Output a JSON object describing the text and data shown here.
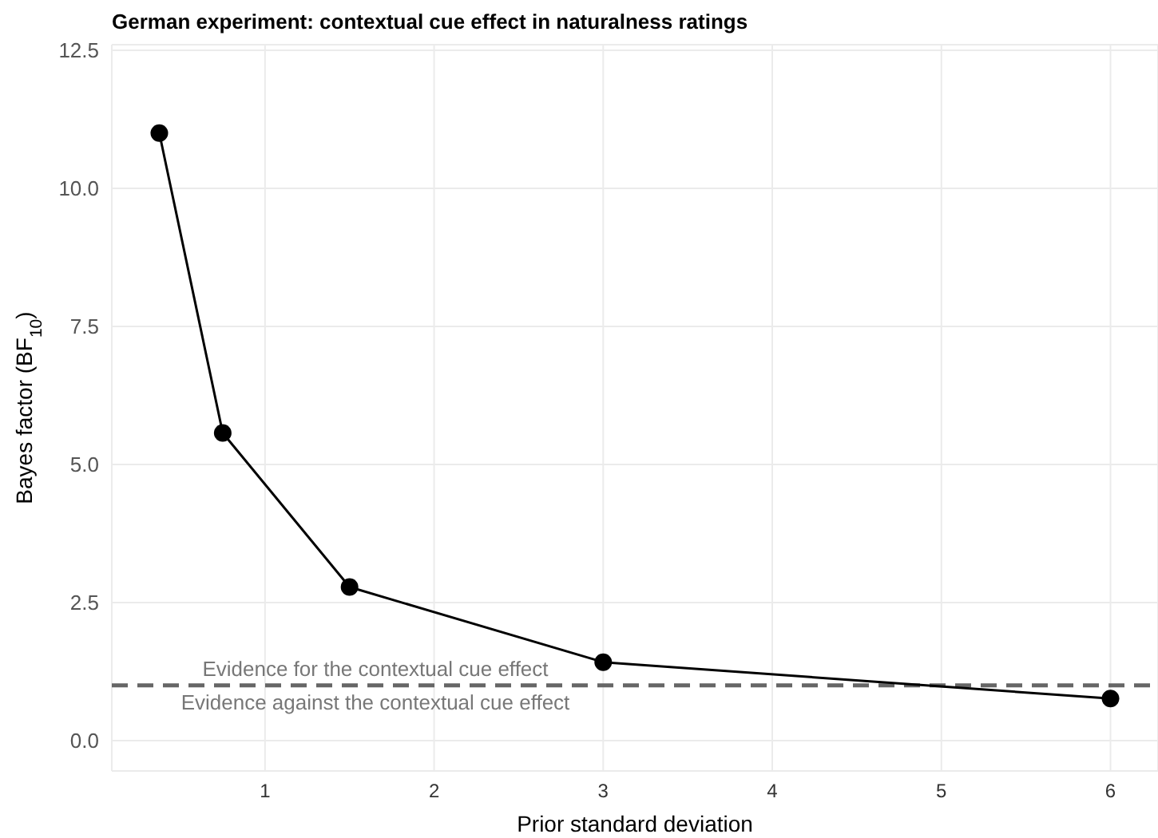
{
  "chart_data": {
    "type": "line",
    "title": "German experiment: contextual cue effect in naturalness ratings",
    "xlabel": "Prior standard deviation",
    "ylabel": "Bayes factor (BF$_{10}$)",
    "x": [
      0.375,
      0.75,
      1.5,
      3,
      6
    ],
    "series": [
      {
        "color": "#000000",
        "values": [
          11.0,
          5.57,
          2.78,
          1.42,
          0.76
        ]
      }
    ],
    "xlim": [
      0.094,
      6.281
    ],
    "xticks": [
      1,
      2,
      3,
      4,
      5,
      6
    ],
    "ylim": [
      -0.55,
      12.6
    ],
    "yticks": [
      {
        "value": 0,
        "label": "0.0"
      },
      2.5,
      {
        "value": 5,
        "label": "5.0"
      },
      7.5,
      {
        "value": 10,
        "label": "10.0"
      },
      12.5
    ],
    "ref_lines": [
      {
        "axis": "y",
        "value": 1,
        "color": "#666666",
        "line_style": "dashed"
      }
    ],
    "annotations": [
      "Evidence for the contextual cue effect",
      "Evidence against the contextual cue effect"
    ],
    "grid": true,
    "marker": "circle",
    "line_style": "solid"
  }
}
